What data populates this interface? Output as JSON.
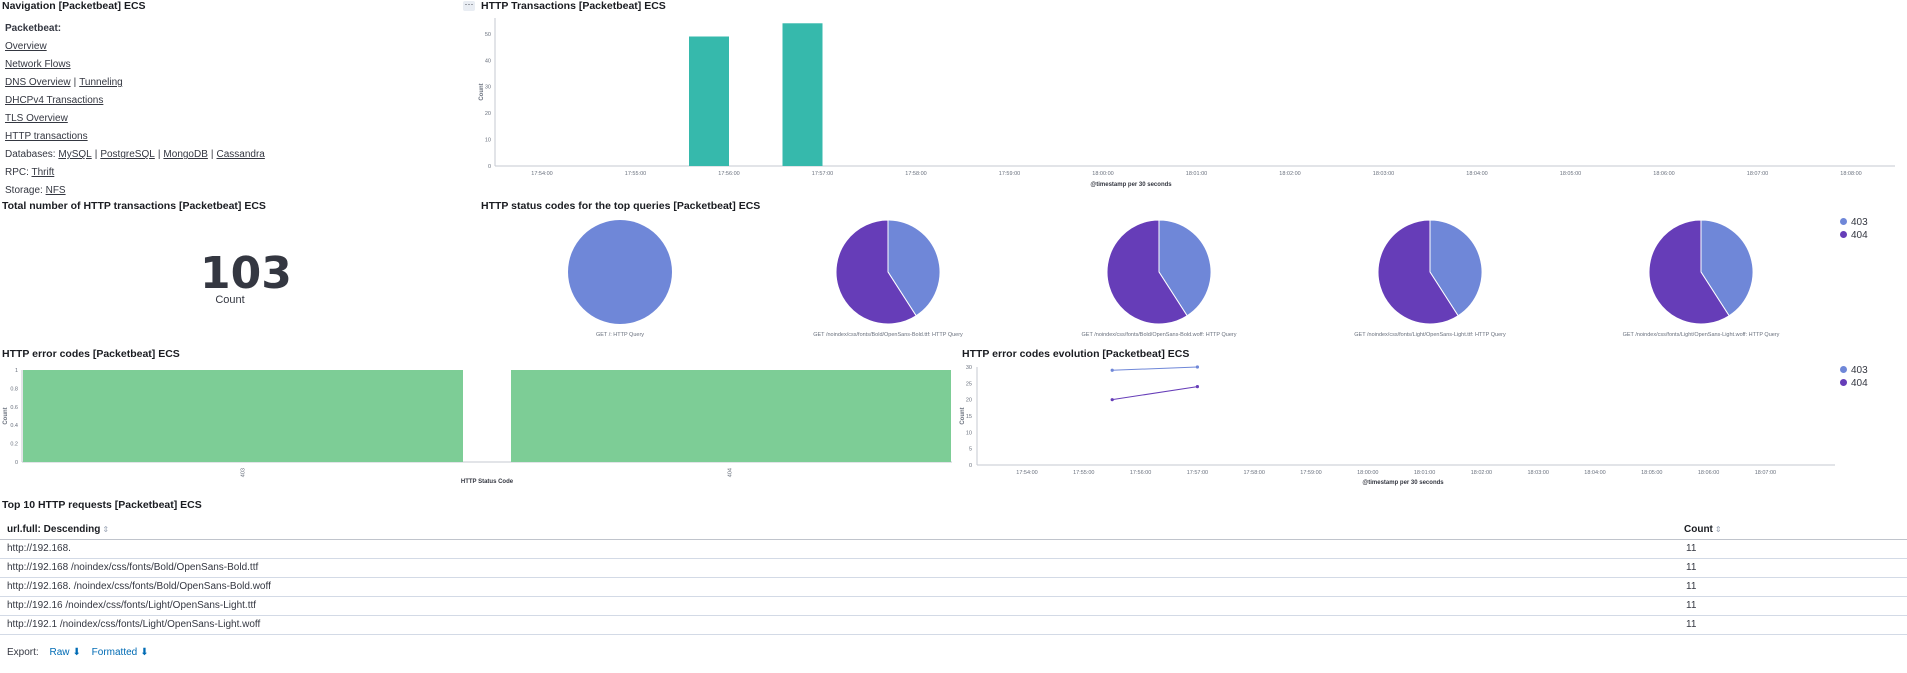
{
  "navigation": {
    "title": "Navigation [Packetbeat] ECS",
    "heading": "Packetbeat:",
    "links": {
      "overview": "Overview",
      "network_flows": "Network Flows",
      "dns_overview": "DNS Overview",
      "tunneling": "Tunneling",
      "dhcp": "DHCPv4 Transactions",
      "tls": "TLS Overview",
      "http": "HTTP transactions",
      "mysql": "MySQL",
      "postgresql": "PostgreSQL",
      "mongodb": "MongoDB",
      "cassandra": "Cassandra",
      "thrift": "Thrift",
      "nfs": "NFS"
    },
    "databases_label": "Databases:",
    "rpc_label": "RPC:",
    "storage_label": "Storage:",
    "separator": "|"
  },
  "options_icon": "ellipsis-icon",
  "options_glyph": "···",
  "metric": {
    "title": "Total number of HTTP transactions [Packetbeat] ECS",
    "value": "103",
    "label": "Count"
  },
  "status_pies": {
    "title": "HTTP status codes for the top queries [Packetbeat] ECS",
    "legend": [
      {
        "label": "403",
        "color": "#6f87d8"
      },
      {
        "label": "404",
        "color": "#663db8"
      }
    ],
    "pies": [
      {
        "label": "GET /: HTTP Query",
        "values": [
          1,
          0
        ]
      },
      {
        "label": "GET /noindex/css/fonts/Bold/OpenSans-Bold.ttf: HTTP Query",
        "values": [
          4.5,
          6.5
        ]
      },
      {
        "label": "GET /noindex/css/fonts/Bold/OpenSans-Bold.woff: HTTP Query",
        "values": [
          4.5,
          6.5
        ]
      },
      {
        "label": "GET /noindex/css/fonts/Light/OpenSans-Light.ttf: HTTP Query",
        "values": [
          4.5,
          6.5
        ]
      },
      {
        "label": "GET /noindex/css/fonts/Light/OpenSans-Light.woff: HTTP Query",
        "values": [
          4.5,
          6.5
        ]
      }
    ]
  },
  "error_legend": [
    {
      "label": "403",
      "color": "#6f87d8"
    },
    {
      "label": "404",
      "color": "#663db8"
    }
  ],
  "export": {
    "label": "Export:",
    "raw": "Raw",
    "formatted": "Formatted",
    "download_icon": "download-icon",
    "download_glyph": "⬇"
  },
  "top_requests": {
    "title": "Top 10 HTTP requests [Packetbeat] ECS",
    "columns": [
      "url.full: Descending",
      "Count"
    ],
    "sort_glyph": "⇕",
    "rows": [
      {
        "url": "http://192.168.",
        "count": "11"
      },
      {
        "url": "http://192.168  /noindex/css/fonts/Bold/OpenSans-Bold.ttf",
        "count": "11"
      },
      {
        "url": "http://192.168.  /noindex/css/fonts/Bold/OpenSans-Bold.woff",
        "count": "11"
      },
      {
        "url": "http://192.16  /noindex/css/fonts/Light/OpenSans-Light.ttf",
        "count": "11"
      },
      {
        "url": "http://192.1  /noindex/css/fonts/Light/OpenSans-Light.woff",
        "count": "11"
      }
    ]
  },
  "chart_data": [
    {
      "type": "bar",
      "title": "HTTP Transactions [Packetbeat] ECS",
      "xlabel": "@timestamp per 30 seconds",
      "ylabel": "Count",
      "ylim": [
        0,
        56
      ],
      "yticks": [
        0,
        10,
        20,
        30,
        40,
        50
      ],
      "categories": [
        "17:54:00",
        "17:55:00",
        "17:56:00",
        "17:57:00",
        "17:58:00",
        "17:59:00",
        "18:00:00",
        "18:01:00",
        "18:02:00",
        "18:03:00",
        "18:04:00",
        "18:05:00",
        "18:06:00",
        "18:07:00",
        "18:08:00"
      ],
      "bars": [
        {
          "x": "17:56:00",
          "value": 49
        },
        {
          "x": "17:57:00",
          "value": 54
        }
      ],
      "color": "#36b9ac"
    },
    {
      "type": "bar",
      "title": "HTTP error codes [Packetbeat] ECS",
      "xlabel": "HTTP Status Code",
      "ylabel": "Count",
      "ylim": [
        0,
        1
      ],
      "yticks": [
        0,
        0.2,
        0.4,
        0.6,
        0.8,
        1
      ],
      "categories": [
        "403",
        "404"
      ],
      "values": [
        1,
        1
      ],
      "color": "#7dcd96"
    },
    {
      "type": "line",
      "title": "HTTP error codes evolution [Packetbeat] ECS",
      "xlabel": "@timestamp per 30 seconds",
      "ylabel": "Count",
      "ylim": [
        0,
        30
      ],
      "yticks": [
        0,
        5,
        10,
        15,
        20,
        25,
        30
      ],
      "categories": [
        "17:54:00",
        "17:55:00",
        "17:56:00",
        "17:57:00",
        "17:58:00",
        "17:59:00",
        "18:00:00",
        "18:01:00",
        "18:02:00",
        "18:03:00",
        "18:04:00",
        "18:05:00",
        "18:06:00",
        "18:07:00"
      ],
      "series": [
        {
          "name": "403",
          "color": "#6f87d8",
          "points": [
            {
              "x": 1.5,
              "y": 29
            },
            {
              "x": 3,
              "y": 30
            }
          ]
        },
        {
          "name": "404",
          "color": "#663db8",
          "points": [
            {
              "x": 1.5,
              "y": 20
            },
            {
              "x": 3,
              "y": 24
            }
          ]
        }
      ]
    }
  ]
}
